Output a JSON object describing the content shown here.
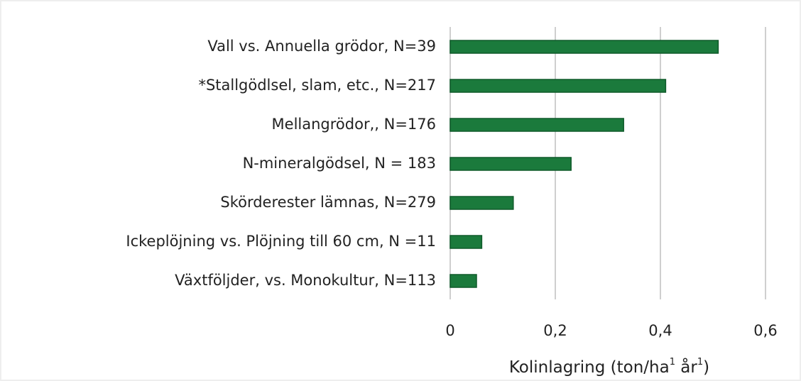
{
  "chart_data": {
    "type": "bar",
    "orientation": "horizontal",
    "categories": [
      "Vall vs. Annuella grödor, N=39",
      "*Stallgödlsel, slam, etc., N=217",
      "Mellangrödor,, N=176",
      "N-mineralgödsel, N = 183",
      "Skörderester lämnas, N=279",
      "Ickeplöjning vs. Plöjning till 60 cm, N =11",
      "Växtföljder, vs. Monokultur, N=113"
    ],
    "values": [
      0.51,
      0.41,
      0.33,
      0.23,
      0.12,
      0.06,
      0.05
    ],
    "color": "#1b7a3c",
    "xlim": [
      0,
      0.6
    ],
    "xticks": [
      0,
      {
        "value": 0.2,
        "label": "0,2"
      },
      {
        "value": 0.4,
        "label": "0,4"
      },
      {
        "value": 0.6,
        "label": "0,6"
      }
    ],
    "xlabel": [
      "Kolinlagring (ton/ha",
      "1",
      " år",
      "1",
      ")"
    ],
    "grid": true
  }
}
